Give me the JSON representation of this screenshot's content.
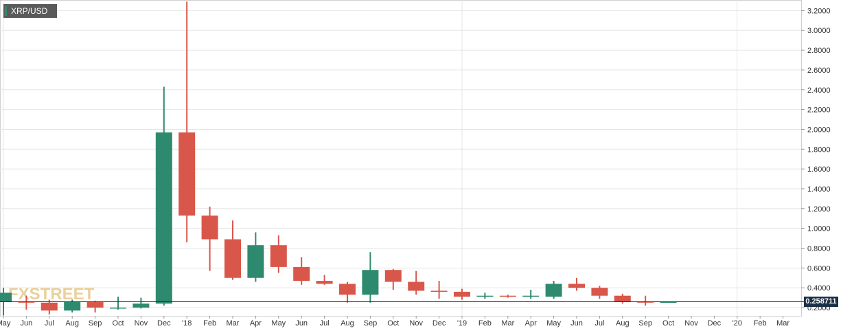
{
  "symbol": "XRP/USD",
  "current_price": "0.258711",
  "watermark": "FXSTREET",
  "colors": {
    "up": "#2e8a6e",
    "down": "#d9574a",
    "grid": "#e6e6e6",
    "price_line": "#1c3048"
  },
  "chart_data": {
    "type": "candlestick",
    "title": "XRP/USD",
    "interval": "monthly",
    "y_ticks": [
      "3.2000",
      "3.0000",
      "2.8000",
      "2.6000",
      "2.4000",
      "2.2000",
      "2.0000",
      "1.8000",
      "1.6000",
      "1.4000",
      "1.2000",
      "1.0000",
      "0.8000",
      "0.6000",
      "0.4000",
      "0.2000"
    ],
    "ylim": [
      0.15,
      3.3
    ],
    "x_labels": [
      "May",
      "Jun",
      "Jul",
      "Aug",
      "Sep",
      "Oct",
      "Nov",
      "Dec",
      "'18",
      "Feb",
      "Mar",
      "Apr",
      "May",
      "Jun",
      "Jul",
      "Aug",
      "Sep",
      "Oct",
      "Nov",
      "Dec",
      "'19",
      "Feb",
      "Mar",
      "Apr",
      "May",
      "Jun",
      "Jul",
      "Aug",
      "Sep",
      "Oct",
      "Nov",
      "Dec",
      "'20",
      "Feb",
      "Mar"
    ],
    "candles": [
      {
        "x": "May",
        "o": 0.26,
        "h": 0.4,
        "l": 0.12,
        "c": 0.35
      },
      {
        "x": "Jun",
        "o": 0.26,
        "h": 0.32,
        "l": 0.18,
        "c": 0.25
      },
      {
        "x": "Jul",
        "o": 0.25,
        "h": 0.28,
        "l": 0.13,
        "c": 0.17
      },
      {
        "x": "Aug",
        "o": 0.17,
        "h": 0.28,
        "l": 0.15,
        "c": 0.26
      },
      {
        "x": "Sep",
        "o": 0.26,
        "h": 0.27,
        "l": 0.15,
        "c": 0.2
      },
      {
        "x": "Oct",
        "o": 0.2,
        "h": 0.31,
        "l": 0.18,
        "c": 0.2
      },
      {
        "x": "Nov",
        "o": 0.2,
        "h": 0.3,
        "l": 0.19,
        "c": 0.24
      },
      {
        "x": "Dec",
        "o": 0.24,
        "h": 2.43,
        "l": 0.22,
        "c": 1.97
      },
      {
        "x": "'18",
        "o": 1.97,
        "h": 3.29,
        "l": 0.86,
        "c": 1.13
      },
      {
        "x": "Feb",
        "o": 1.13,
        "h": 1.22,
        "l": 0.57,
        "c": 0.89
      },
      {
        "x": "Mar",
        "o": 0.89,
        "h": 1.08,
        "l": 0.48,
        "c": 0.5
      },
      {
        "x": "Apr",
        "o": 0.5,
        "h": 0.96,
        "l": 0.46,
        "c": 0.83
      },
      {
        "x": "May",
        "o": 0.83,
        "h": 0.93,
        "l": 0.55,
        "c": 0.61
      },
      {
        "x": "Jun",
        "o": 0.61,
        "h": 0.71,
        "l": 0.43,
        "c": 0.47
      },
      {
        "x": "Jul",
        "o": 0.47,
        "h": 0.53,
        "l": 0.43,
        "c": 0.44
      },
      {
        "x": "Aug",
        "o": 0.44,
        "h": 0.46,
        "l": 0.25,
        "c": 0.33
      },
      {
        "x": "Sep",
        "o": 0.33,
        "h": 0.76,
        "l": 0.25,
        "c": 0.58
      },
      {
        "x": "Oct",
        "o": 0.58,
        "h": 0.59,
        "l": 0.38,
        "c": 0.46
      },
      {
        "x": "Nov",
        "o": 0.46,
        "h": 0.57,
        "l": 0.33,
        "c": 0.37
      },
      {
        "x": "Dec",
        "o": 0.37,
        "h": 0.47,
        "l": 0.29,
        "c": 0.36
      },
      {
        "x": "'19",
        "o": 0.36,
        "h": 0.39,
        "l": 0.28,
        "c": 0.31
      },
      {
        "x": "Feb",
        "o": 0.31,
        "h": 0.35,
        "l": 0.29,
        "c": 0.32
      },
      {
        "x": "Mar",
        "o": 0.32,
        "h": 0.33,
        "l": 0.3,
        "c": 0.31
      },
      {
        "x": "Apr",
        "o": 0.31,
        "h": 0.38,
        "l": 0.29,
        "c": 0.32
      },
      {
        "x": "May",
        "o": 0.31,
        "h": 0.47,
        "l": 0.29,
        "c": 0.44
      },
      {
        "x": "Jun",
        "o": 0.44,
        "h": 0.5,
        "l": 0.37,
        "c": 0.4
      },
      {
        "x": "Jul",
        "o": 0.4,
        "h": 0.42,
        "l": 0.29,
        "c": 0.32
      },
      {
        "x": "Aug",
        "o": 0.32,
        "h": 0.34,
        "l": 0.24,
        "c": 0.26
      },
      {
        "x": "Sep",
        "o": 0.26,
        "h": 0.32,
        "l": 0.22,
        "c": 0.25
      },
      {
        "x": "Oct",
        "o": 0.258,
        "h": 0.262,
        "l": 0.254,
        "c": 0.2587
      }
    ]
  }
}
